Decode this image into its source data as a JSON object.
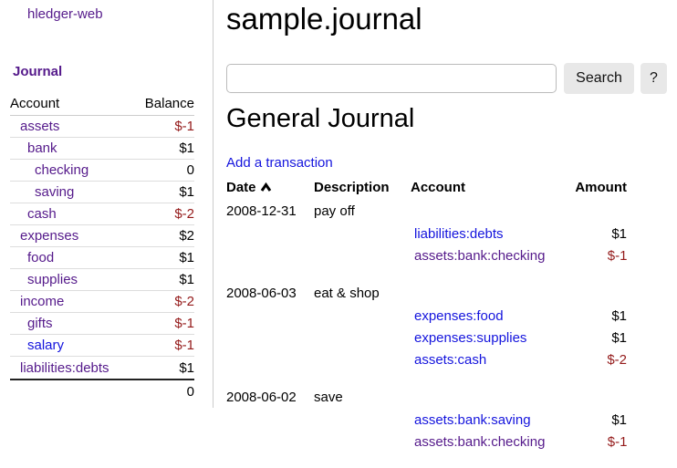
{
  "colors": {
    "purple": "#551a8b",
    "blue": "#1414dd",
    "red": "#941a1a"
  },
  "app": {
    "name": "hledger-web"
  },
  "sidebar": {
    "nav_journal_label": "Journal",
    "table": {
      "account_header": "Account",
      "balance_header": "Balance",
      "rows": [
        {
          "account": "assets",
          "balance": "$-1",
          "indent": 1,
          "negative": true,
          "link_style": "visited"
        },
        {
          "account": "bank",
          "balance": "$1",
          "indent": 2,
          "negative": false,
          "link_style": "visited"
        },
        {
          "account": "checking",
          "balance": "0",
          "indent": 3,
          "negative": false,
          "link_style": "visited"
        },
        {
          "account": "saving",
          "balance": "$1",
          "indent": 3,
          "negative": false,
          "link_style": "visited"
        },
        {
          "account": "cash",
          "balance": "$-2",
          "indent": 2,
          "negative": true,
          "link_style": "visited"
        },
        {
          "account": "expenses",
          "balance": "$2",
          "indent": 1,
          "negative": false,
          "link_style": "visited"
        },
        {
          "account": "food",
          "balance": "$1",
          "indent": 2,
          "negative": false,
          "link_style": "visited"
        },
        {
          "account": "supplies",
          "balance": "$1",
          "indent": 2,
          "negative": false,
          "link_style": "visited"
        },
        {
          "account": "income",
          "balance": "$-2",
          "indent": 1,
          "negative": true,
          "link_style": "visited"
        },
        {
          "account": "gifts",
          "balance": "$-1",
          "indent": 2,
          "negative": true,
          "link_style": "visited"
        },
        {
          "account": "salary",
          "balance": "$-1",
          "indent": 2,
          "negative": true,
          "link_style": "unvisited"
        },
        {
          "account": "liabilities:debts",
          "balance": "$1",
          "indent": 1,
          "negative": false,
          "link_style": "visited"
        }
      ],
      "total": "0"
    }
  },
  "main": {
    "title": "sample.journal",
    "search": {
      "value": "",
      "placeholder": "",
      "button_label": "Search",
      "help_label": "?"
    },
    "journal": {
      "heading": "General Journal",
      "add_transaction_label": "Add a transaction",
      "columns": {
        "date": "Date",
        "description": "Description",
        "account": "Account",
        "amount": "Amount"
      },
      "sort": {
        "column": "date",
        "direction": "ascending"
      },
      "transactions": [
        {
          "date": "2008-12-31",
          "description": "pay off",
          "postings": [
            {
              "account": "liabilities:debts",
              "amount": "$1",
              "negative": false,
              "link_style": "unvisited"
            },
            {
              "account": "assets:bank:checking",
              "amount": "$-1",
              "negative": true,
              "link_style": "visited"
            }
          ]
        },
        {
          "date": "2008-06-03",
          "description": "eat & shop",
          "postings": [
            {
              "account": "expenses:food",
              "amount": "$1",
              "negative": false,
              "link_style": "unvisited"
            },
            {
              "account": "expenses:supplies",
              "amount": "$1",
              "negative": false,
              "link_style": "unvisited"
            },
            {
              "account": "assets:cash",
              "amount": "$-2",
              "negative": true,
              "link_style": "unvisited"
            }
          ]
        },
        {
          "date": "2008-06-02",
          "description": "save",
          "postings": [
            {
              "account": "assets:bank:saving",
              "amount": "$1",
              "negative": false,
              "link_style": "unvisited"
            },
            {
              "account": "assets:bank:checking",
              "amount": "$-1",
              "negative": true,
              "link_style": "visited"
            }
          ]
        }
      ]
    }
  }
}
